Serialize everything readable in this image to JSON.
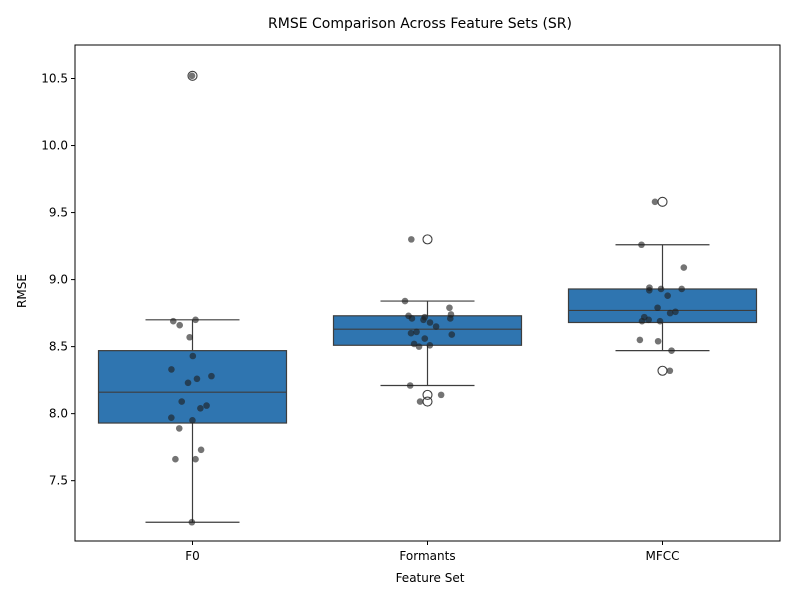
{
  "chart_data": {
    "type": "box",
    "title": "RMSE Comparison Across Feature Sets (SR)",
    "xlabel": "Feature Set",
    "ylabel": "RMSE",
    "ylim": [
      7.05,
      10.75
    ],
    "yticks": [
      7.5,
      8.0,
      8.5,
      9.0,
      9.5,
      10.0,
      10.5
    ],
    "ytick_labels": [
      "7.5",
      "8.0",
      "8.5",
      "9.0",
      "9.5",
      "10.0",
      "10.5"
    ],
    "box_color": "#2f75b0",
    "categories": [
      "F0",
      "Formants",
      "MFCC"
    ],
    "boxes": [
      {
        "name": "F0",
        "q1": 7.93,
        "median": 8.16,
        "q3": 8.47,
        "whisker_low": 7.19,
        "whisker_high": 8.7,
        "outliers": [
          10.52
        ]
      },
      {
        "name": "Formants",
        "q1": 8.51,
        "median": 8.63,
        "q3": 8.73,
        "whisker_low": 8.21,
        "whisker_high": 8.84,
        "outliers": [
          9.3,
          8.14,
          8.09
        ]
      },
      {
        "name": "MFCC",
        "q1": 8.68,
        "median": 8.77,
        "q3": 8.93,
        "whisker_low": 8.47,
        "whisker_high": 9.26,
        "outliers": [
          9.58,
          8.32
        ]
      }
    ],
    "points": [
      [
        10.52,
        8.7,
        8.69,
        8.66,
        8.57,
        8.43,
        8.33,
        8.28,
        8.26,
        8.23,
        8.09,
        8.06,
        8.04,
        7.97,
        7.95,
        7.89,
        7.73,
        7.66,
        7.66,
        7.19
      ],
      [
        9.3,
        8.84,
        8.79,
        8.74,
        8.73,
        8.72,
        8.71,
        8.71,
        8.7,
        8.68,
        8.65,
        8.61,
        8.6,
        8.59,
        8.56,
        8.52,
        8.51,
        8.5,
        8.21,
        8.14,
        8.09
      ],
      [
        9.58,
        9.26,
        9.09,
        8.94,
        8.93,
        8.93,
        8.92,
        8.88,
        8.79,
        8.76,
        8.75,
        8.72,
        8.7,
        8.69,
        8.69,
        8.55,
        8.54,
        8.47,
        8.32
      ]
    ]
  }
}
